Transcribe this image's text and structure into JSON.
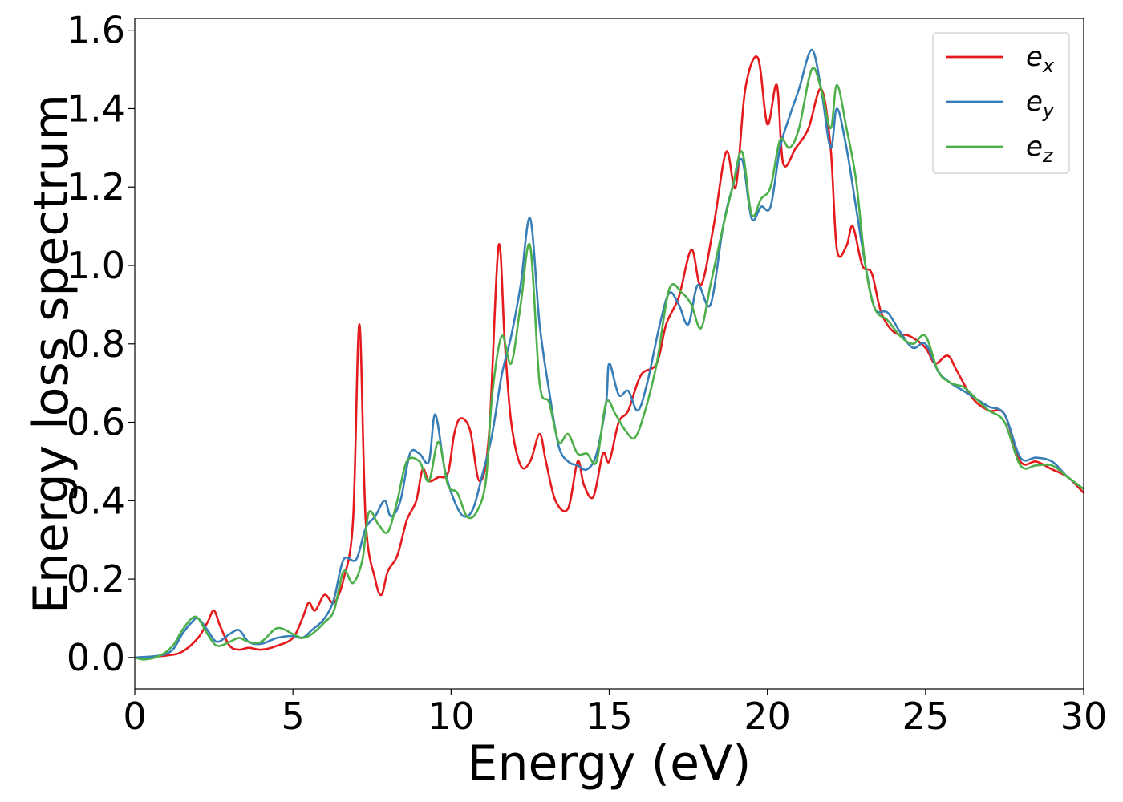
{
  "chart_data": {
    "type": "line",
    "title": "",
    "xlabel": "Energy (eV)",
    "ylabel": "Energy loss spectrum",
    "xlim": [
      0,
      30
    ],
    "ylim": [
      -0.08,
      1.63
    ],
    "xticks": [
      0,
      5,
      10,
      15,
      20,
      25,
      30
    ],
    "xtick_labels": [
      "0",
      "5",
      "10",
      "15",
      "20",
      "25",
      "30"
    ],
    "yticks": [
      0.0,
      0.2,
      0.4,
      0.6,
      0.8,
      1.0,
      1.2,
      1.4,
      1.6
    ],
    "ytick_labels": [
      "0.0",
      "0.2",
      "0.4",
      "0.6",
      "0.8",
      "1.0",
      "1.2",
      "1.4",
      "1.6"
    ],
    "grid": false,
    "legend_position": "top-right",
    "series": [
      {
        "name": "e_x",
        "label_main": "e",
        "label_sub": "x",
        "color": "#e41a1c",
        "points": [
          [
            0,
            0
          ],
          [
            1,
            0.005
          ],
          [
            1.5,
            0.015
          ],
          [
            2,
            0.05
          ],
          [
            2.3,
            0.09
          ],
          [
            2.5,
            0.12
          ],
          [
            2.7,
            0.08
          ],
          [
            3,
            0.03
          ],
          [
            3.3,
            0.02
          ],
          [
            3.6,
            0.025
          ],
          [
            4,
            0.02
          ],
          [
            4.5,
            0.03
          ],
          [
            5,
            0.05
          ],
          [
            5.3,
            0.1
          ],
          [
            5.5,
            0.14
          ],
          [
            5.7,
            0.12
          ],
          [
            6,
            0.16
          ],
          [
            6.3,
            0.14
          ],
          [
            6.6,
            0.2
          ],
          [
            6.9,
            0.35
          ],
          [
            7.1,
            0.85
          ],
          [
            7.3,
            0.35
          ],
          [
            7.6,
            0.2
          ],
          [
            7.8,
            0.16
          ],
          [
            8,
            0.22
          ],
          [
            8.3,
            0.26
          ],
          [
            8.6,
            0.35
          ],
          [
            8.9,
            0.4
          ],
          [
            9.1,
            0.48
          ],
          [
            9.3,
            0.45
          ],
          [
            9.6,
            0.46
          ],
          [
            9.9,
            0.47
          ],
          [
            10.1,
            0.57
          ],
          [
            10.3,
            0.61
          ],
          [
            10.6,
            0.58
          ],
          [
            10.9,
            0.45
          ],
          [
            11.2,
            0.57
          ],
          [
            11.5,
            1.05
          ],
          [
            11.7,
            0.8
          ],
          [
            11.9,
            0.6
          ],
          [
            12.2,
            0.49
          ],
          [
            12.5,
            0.5
          ],
          [
            12.8,
            0.57
          ],
          [
            13,
            0.5
          ],
          [
            13.3,
            0.4
          ],
          [
            13.7,
            0.38
          ],
          [
            14,
            0.5
          ],
          [
            14.2,
            0.44
          ],
          [
            14.5,
            0.41
          ],
          [
            14.8,
            0.52
          ],
          [
            15,
            0.5
          ],
          [
            15.3,
            0.6
          ],
          [
            15.6,
            0.63
          ],
          [
            16,
            0.72
          ],
          [
            16.5,
            0.75
          ],
          [
            16.8,
            0.85
          ],
          [
            17.2,
            0.92
          ],
          [
            17.6,
            1.04
          ],
          [
            17.9,
            0.95
          ],
          [
            18.3,
            1.1
          ],
          [
            18.7,
            1.29
          ],
          [
            19,
            1.2
          ],
          [
            19.3,
            1.45
          ],
          [
            19.7,
            1.53
          ],
          [
            20,
            1.36
          ],
          [
            20.3,
            1.46
          ],
          [
            20.5,
            1.26
          ],
          [
            20.9,
            1.3
          ],
          [
            21.3,
            1.35
          ],
          [
            21.7,
            1.45
          ],
          [
            22,
            1.3
          ],
          [
            22.2,
            1.04
          ],
          [
            22.5,
            1.05
          ],
          [
            22.7,
            1.1
          ],
          [
            23,
            1.0
          ],
          [
            23.3,
            0.98
          ],
          [
            23.6,
            0.88
          ],
          [
            24,
            0.83
          ],
          [
            24.5,
            0.82
          ],
          [
            25,
            0.79
          ],
          [
            25.3,
            0.75
          ],
          [
            25.7,
            0.77
          ],
          [
            26,
            0.73
          ],
          [
            26.5,
            0.66
          ],
          [
            27,
            0.63
          ],
          [
            27.5,
            0.62
          ],
          [
            28,
            0.5
          ],
          [
            28.5,
            0.5
          ],
          [
            29,
            0.48
          ],
          [
            29.5,
            0.46
          ],
          [
            30,
            0.42
          ]
        ]
      },
      {
        "name": "e_y",
        "label_main": "e",
        "label_sub": "y",
        "color": "#377eb8",
        "points": [
          [
            0,
            0
          ],
          [
            0.8,
            0.005
          ],
          [
            1.2,
            0.02
          ],
          [
            1.5,
            0.06
          ],
          [
            1.8,
            0.09
          ],
          [
            2,
            0.1
          ],
          [
            2.3,
            0.07
          ],
          [
            2.6,
            0.04
          ],
          [
            3,
            0.06
          ],
          [
            3.3,
            0.07
          ],
          [
            3.6,
            0.04
          ],
          [
            4,
            0.035
          ],
          [
            4.5,
            0.05
          ],
          [
            5,
            0.055
          ],
          [
            5.3,
            0.05
          ],
          [
            5.6,
            0.07
          ],
          [
            6,
            0.1
          ],
          [
            6.3,
            0.15
          ],
          [
            6.6,
            0.25
          ],
          [
            7,
            0.25
          ],
          [
            7.3,
            0.33
          ],
          [
            7.6,
            0.36
          ],
          [
            7.9,
            0.4
          ],
          [
            8.1,
            0.36
          ],
          [
            8.4,
            0.4
          ],
          [
            8.7,
            0.52
          ],
          [
            9,
            0.52
          ],
          [
            9.3,
            0.5
          ],
          [
            9.5,
            0.62
          ],
          [
            9.8,
            0.48
          ],
          [
            10.1,
            0.4
          ],
          [
            10.4,
            0.36
          ],
          [
            10.7,
            0.38
          ],
          [
            11,
            0.47
          ],
          [
            11.3,
            0.57
          ],
          [
            11.6,
            0.72
          ],
          [
            11.9,
            0.82
          ],
          [
            12.2,
            0.95
          ],
          [
            12.5,
            1.12
          ],
          [
            12.8,
            0.85
          ],
          [
            13.1,
            0.68
          ],
          [
            13.4,
            0.54
          ],
          [
            13.7,
            0.5
          ],
          [
            14,
            0.49
          ],
          [
            14.3,
            0.48
          ],
          [
            14.6,
            0.52
          ],
          [
            14.9,
            0.65
          ],
          [
            15,
            0.75
          ],
          [
            15.3,
            0.67
          ],
          [
            15.6,
            0.68
          ],
          [
            15.9,
            0.63
          ],
          [
            16.2,
            0.7
          ],
          [
            16.6,
            0.85
          ],
          [
            16.9,
            0.93
          ],
          [
            17.2,
            0.9
          ],
          [
            17.5,
            0.85
          ],
          [
            17.8,
            0.95
          ],
          [
            18.2,
            0.9
          ],
          [
            18.6,
            1.1
          ],
          [
            18.9,
            1.2
          ],
          [
            19.2,
            1.27
          ],
          [
            19.5,
            1.12
          ],
          [
            19.8,
            1.15
          ],
          [
            20.1,
            1.15
          ],
          [
            20.4,
            1.3
          ],
          [
            20.7,
            1.38
          ],
          [
            21,
            1.45
          ],
          [
            21.4,
            1.55
          ],
          [
            21.7,
            1.45
          ],
          [
            22,
            1.3
          ],
          [
            22.2,
            1.4
          ],
          [
            22.5,
            1.3
          ],
          [
            22.8,
            1.15
          ],
          [
            23.1,
            1.0
          ],
          [
            23.4,
            0.89
          ],
          [
            23.8,
            0.88
          ],
          [
            24.2,
            0.83
          ],
          [
            24.6,
            0.79
          ],
          [
            25,
            0.8
          ],
          [
            25.4,
            0.73
          ],
          [
            25.8,
            0.7
          ],
          [
            26.2,
            0.68
          ],
          [
            26.6,
            0.66
          ],
          [
            27,
            0.64
          ],
          [
            27.5,
            0.62
          ],
          [
            28,
            0.51
          ],
          [
            28.5,
            0.51
          ],
          [
            29,
            0.5
          ],
          [
            29.5,
            0.46
          ],
          [
            30,
            0.43
          ]
        ]
      },
      {
        "name": "e_z",
        "label_main": "e",
        "label_sub": "z",
        "color": "#4daf4a",
        "points": [
          [
            0,
            0
          ],
          [
            0.3,
            -0.005
          ],
          [
            0.8,
            0.005
          ],
          [
            1.2,
            0.03
          ],
          [
            1.5,
            0.07
          ],
          [
            1.8,
            0.1
          ],
          [
            2,
            0.1
          ],
          [
            2.3,
            0.06
          ],
          [
            2.6,
            0.03
          ],
          [
            3,
            0.04
          ],
          [
            3.3,
            0.05
          ],
          [
            3.6,
            0.04
          ],
          [
            4,
            0.04
          ],
          [
            4.5,
            0.075
          ],
          [
            5,
            0.06
          ],
          [
            5.3,
            0.05
          ],
          [
            5.6,
            0.06
          ],
          [
            6,
            0.09
          ],
          [
            6.3,
            0.12
          ],
          [
            6.6,
            0.22
          ],
          [
            6.9,
            0.19
          ],
          [
            7.2,
            0.25
          ],
          [
            7.4,
            0.37
          ],
          [
            7.7,
            0.34
          ],
          [
            8,
            0.32
          ],
          [
            8.3,
            0.4
          ],
          [
            8.6,
            0.5
          ],
          [
            9,
            0.5
          ],
          [
            9.3,
            0.45
          ],
          [
            9.6,
            0.55
          ],
          [
            9.9,
            0.44
          ],
          [
            10.2,
            0.42
          ],
          [
            10.5,
            0.36
          ],
          [
            10.8,
            0.37
          ],
          [
            11.1,
            0.45
          ],
          [
            11.3,
            0.67
          ],
          [
            11.6,
            0.82
          ],
          [
            11.9,
            0.75
          ],
          [
            12.2,
            0.9
          ],
          [
            12.5,
            1.05
          ],
          [
            12.8,
            0.7
          ],
          [
            13.1,
            0.65
          ],
          [
            13.4,
            0.55
          ],
          [
            13.7,
            0.57
          ],
          [
            14,
            0.52
          ],
          [
            14.3,
            0.52
          ],
          [
            14.6,
            0.5
          ],
          [
            14.9,
            0.65
          ],
          [
            15.2,
            0.62
          ],
          [
            15.5,
            0.58
          ],
          [
            15.8,
            0.56
          ],
          [
            16.1,
            0.62
          ],
          [
            16.5,
            0.75
          ],
          [
            16.9,
            0.94
          ],
          [
            17.3,
            0.93
          ],
          [
            17.6,
            0.9
          ],
          [
            17.9,
            0.84
          ],
          [
            18.2,
            0.95
          ],
          [
            18.6,
            1.1
          ],
          [
            18.9,
            1.2
          ],
          [
            19.2,
            1.29
          ],
          [
            19.5,
            1.13
          ],
          [
            19.8,
            1.17
          ],
          [
            20.1,
            1.2
          ],
          [
            20.4,
            1.32
          ],
          [
            20.7,
            1.3
          ],
          [
            21,
            1.35
          ],
          [
            21.4,
            1.5
          ],
          [
            21.7,
            1.45
          ],
          [
            22,
            1.35
          ],
          [
            22.2,
            1.46
          ],
          [
            22.5,
            1.35
          ],
          [
            22.8,
            1.22
          ],
          [
            23.1,
            1.0
          ],
          [
            23.4,
            0.89
          ],
          [
            23.8,
            0.86
          ],
          [
            24.2,
            0.82
          ],
          [
            24.6,
            0.8
          ],
          [
            25,
            0.82
          ],
          [
            25.4,
            0.73
          ],
          [
            25.8,
            0.7
          ],
          [
            26.2,
            0.69
          ],
          [
            26.6,
            0.66
          ],
          [
            27,
            0.63
          ],
          [
            27.5,
            0.6
          ],
          [
            28,
            0.49
          ],
          [
            28.5,
            0.49
          ],
          [
            29,
            0.49
          ],
          [
            29.5,
            0.46
          ],
          [
            30,
            0.43
          ]
        ]
      }
    ]
  }
}
